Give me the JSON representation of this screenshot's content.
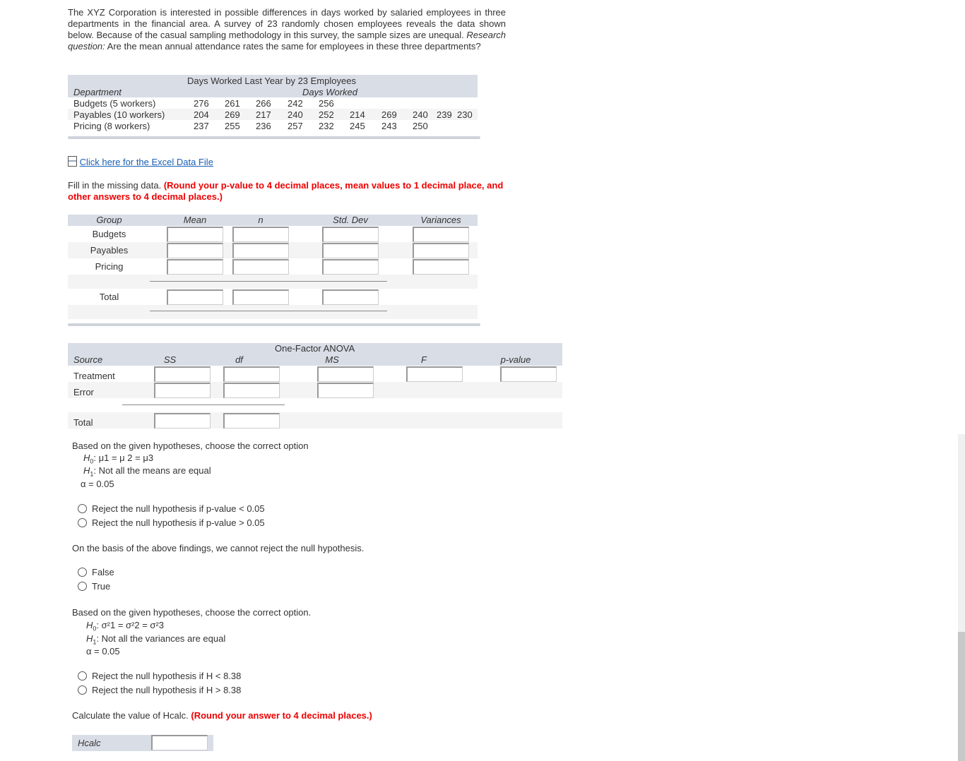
{
  "intro": {
    "text": "The XYZ Corporation is interested in possible differences in days worked by salaried employees in three departments in the financial area. A survey of 23 randomly chosen employees reveals the data shown below. Because of the casual sampling methodology in this survey, the sample sizes are unequal.",
    "rq_label": "Research question:",
    "rq_text": " Are the mean annual attendance rates the same for employees in these three departments?"
  },
  "data_table": {
    "title": "Days Worked Last Year by 23 Employees",
    "col_dept": "Department",
    "col_days": "Days Worked",
    "rows": [
      {
        "label": "Budgets (5 workers)",
        "values": [
          "276",
          "261",
          "266",
          "242",
          "256"
        ]
      },
      {
        "label": "Payables (10 workers)",
        "values": [
          "204",
          "269",
          "217",
          "240",
          "252",
          "214",
          "269",
          "240",
          "239",
          "230"
        ]
      },
      {
        "label": "Pricing (8 workers)",
        "values": [
          "237",
          "255",
          "236",
          "257",
          "232",
          "245",
          "243",
          "250"
        ]
      }
    ]
  },
  "excel_link": "Click here for the Excel Data File",
  "instruction": {
    "text": "Fill in the missing data. ",
    "red": "(Round your p-value to 4 decimal places, mean values to 1 decimal place, and other answers to 4 decimal places.)"
  },
  "summary": {
    "headers": [
      "Group",
      "Mean",
      "n",
      "Std. Dev",
      "Variances"
    ],
    "rows": [
      "Budgets",
      "Payables",
      "Pricing"
    ],
    "total": "Total"
  },
  "anova": {
    "title": "One-Factor ANOVA",
    "headers": [
      "Source",
      "SS",
      "df",
      "MS",
      "F",
      "p-value"
    ],
    "rows": [
      "Treatment",
      "Error"
    ],
    "total": "Total"
  },
  "q1": {
    "prompt": "Based on the given hypotheses, choose the correct option",
    "h0": "μ1 = μ 2 = μ3",
    "h1": "Not all the means are equal",
    "alpha": "α = 0.05",
    "options": [
      "Reject the null hypothesis if p-value < 0.05",
      "Reject the null hypothesis if p-value > 0.05"
    ]
  },
  "q2": {
    "prompt": "On the basis of the above findings, we cannot reject the null hypothesis.",
    "options": [
      "False",
      "True"
    ]
  },
  "q3": {
    "prompt": "Based on the given hypotheses, choose the correct option.",
    "h0": "σ²1 = σ²2 = σ²3",
    "h1": "Not all the variances are equal",
    "alpha": "α = 0.05",
    "options": [
      "Reject the null hypothesis if H < 8.38",
      "Reject the null hypothesis if H > 8.38"
    ]
  },
  "q4": {
    "prompt": "Calculate the value of Hcalc.",
    "red": "(Round your answer to 4 decimal places.)",
    "label": "Hcalc"
  }
}
